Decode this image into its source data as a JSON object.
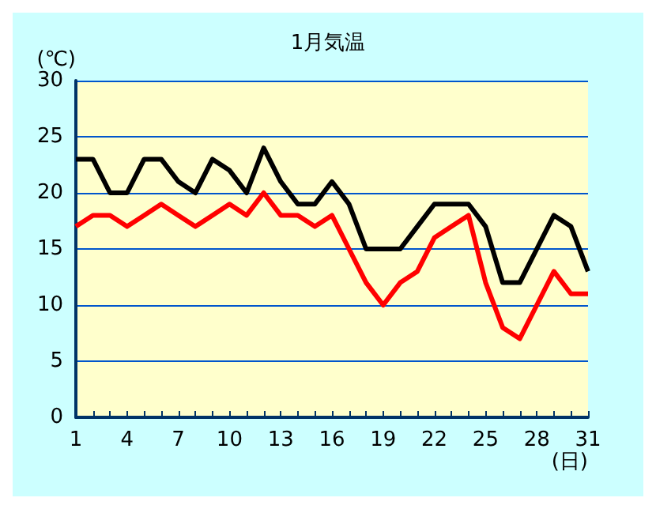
{
  "chart_data": {
    "type": "line",
    "title": "1月気温",
    "xlabel": "(日)",
    "ylabel": "(℃)",
    "x": [
      1,
      2,
      3,
      4,
      5,
      6,
      7,
      8,
      9,
      10,
      11,
      12,
      13,
      14,
      15,
      16,
      17,
      18,
      19,
      20,
      21,
      22,
      23,
      24,
      25,
      26,
      27,
      28,
      29,
      30,
      31
    ],
    "series": [
      {
        "color": "#000000",
        "values": [
          23,
          23,
          20,
          20,
          23,
          23,
          21,
          20,
          23,
          22,
          20,
          24,
          21,
          19,
          19,
          21,
          19,
          15,
          15,
          15,
          17,
          19,
          19,
          19,
          17,
          12,
          12,
          15,
          18,
          17,
          13
        ]
      },
      {
        "color": "#ff0000",
        "values": [
          17,
          18,
          18,
          17,
          18,
          19,
          18,
          17,
          18,
          19,
          18,
          20,
          18,
          18,
          17,
          18,
          15,
          12,
          10,
          12,
          13,
          16,
          17,
          18,
          12,
          8,
          7,
          10,
          13,
          11,
          11
        ]
      }
    ],
    "xlim": [
      1,
      31
    ],
    "xticks": [
      1,
      {
        "value": 2,
        "label": null
      },
      {
        "value": 3,
        "label": null
      },
      4,
      {
        "value": 5,
        "label": null
      },
      {
        "value": 6,
        "label": null
      },
      7,
      {
        "value": 8,
        "label": null
      },
      {
        "value": 9,
        "label": null
      },
      10,
      {
        "value": 11,
        "label": null
      },
      {
        "value": 12,
        "label": null
      },
      13,
      {
        "value": 14,
        "label": null
      },
      {
        "value": 15,
        "label": null
      },
      16,
      {
        "value": 17,
        "label": null
      },
      {
        "value": 18,
        "label": null
      },
      19,
      {
        "value": 20,
        "label": null
      },
      {
        "value": 21,
        "label": null
      },
      22,
      {
        "value": 23,
        "label": null
      },
      {
        "value": 24,
        "label": null
      },
      25,
      {
        "value": 26,
        "label": null
      },
      {
        "value": 27,
        "label": null
      },
      28,
      {
        "value": 29,
        "label": null
      },
      {
        "value": 30,
        "label": null
      },
      31
    ],
    "ylim": [
      0,
      30
    ],
    "yticks": [
      0,
      5,
      10,
      15,
      20,
      25,
      30
    ],
    "grid": "y",
    "marker": "none",
    "line_style": "solid"
  }
}
